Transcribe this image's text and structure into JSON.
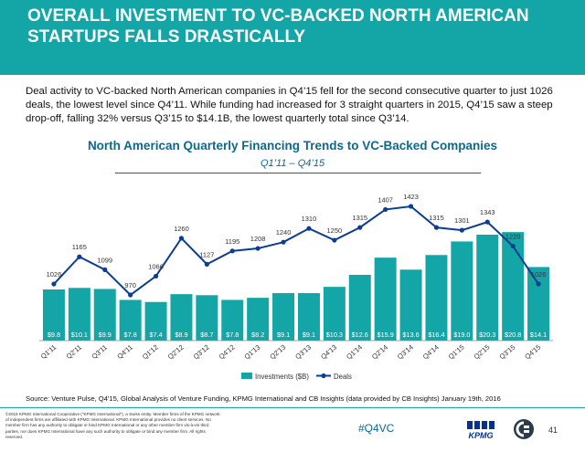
{
  "header": {
    "title": "OVERALL INVESTMENT TO VC-BACKED NORTH AMERICAN STARTUPS FALLS DRASTICALLY"
  },
  "intro_text": "Deal activity to VC-backed North American companies in Q4’15 fell for the second consecutive quarter to just 1026 deals, the lowest level since Q4’11. While funding had increased for 3 straight quarters in 2015, Q4’15 saw a steep drop-off, falling 32% versus Q3’15 to $14.1B, the lowest quarterly total since Q3’14.",
  "chart_data": {
    "type": "bar",
    "title": "North American Quarterly Financing Trends to VC-Backed Companies",
    "subtitle": "Q1’11 – Q4’15",
    "categories": [
      "Q1'11",
      "Q2'11",
      "Q3'11",
      "Q4'11",
      "Q1'12",
      "Q2'12",
      "Q3'12",
      "Q4'12",
      "Q1'13",
      "Q2'13",
      "Q3'13",
      "Q4'13",
      "Q1'14",
      "Q2'14",
      "Q3'14",
      "Q4'14",
      "Q1'15",
      "Q2'15",
      "Q3'15",
      "Q4'15"
    ],
    "series": [
      {
        "name": "Investments ($B)",
        "type": "bar",
        "values": [
          9.8,
          10.1,
          9.9,
          7.8,
          7.4,
          8.9,
          8.7,
          7.8,
          8.2,
          9.1,
          9.1,
          10.3,
          12.6,
          15.9,
          13.6,
          16.4,
          19.0,
          20.3,
          20.8,
          14.1
        ],
        "labels": [
          "$9.8",
          "$10.1",
          "$9.9",
          "$7.8",
          "$7.4",
          "$8.9",
          "$8.7",
          "$7.8",
          "$8.2",
          "$9.1",
          "$9.1",
          "$10.3",
          "$12.6",
          "$15.9",
          "$13.6",
          "$16.4",
          "$19.0",
          "$20.3",
          "$20.8",
          "$14.1"
        ],
        "color": "#14a6a6"
      },
      {
        "name": "Deals",
        "type": "line",
        "values": [
          1026,
          1165,
          1099,
          970,
          1066,
          1260,
          1127,
          1195,
          1208,
          1240,
          1310,
          1250,
          1315,
          1407,
          1423,
          1315,
          1301,
          1343,
          1220,
          1026
        ],
        "color": "#0b3d91"
      }
    ],
    "legend": "bottom-center",
    "grid": false
  },
  "source_text": "Source: Venture Pulse, Q4'15, Global Analysis of Venture Funding, KPMG International and CB Insights (data provided by CB Insights) January 19th, 2016",
  "footer": {
    "copyright": "©2016 KPMG International Cooperative (\"KPMG International\"), a Swiss entity. Member firms of the KPMG network of independent firms are affiliated with KPMG International. KPMG International provides no client services. No member firm has any authority to obligate or bind KPMG International or any other member firm vis-à-vis third parties, nor does KPMG International have any such authority to obligate or bind any member firm. All rights reserved.",
    "hashtag": "#Q4VC",
    "kpmg_logo_text": "KPMG",
    "page_number": "41"
  },
  "colors": {
    "header_bg": "#14a6a6",
    "title_blue": "#0b6a8c",
    "bar": "#14a6a6",
    "line": "#0b3d91"
  }
}
